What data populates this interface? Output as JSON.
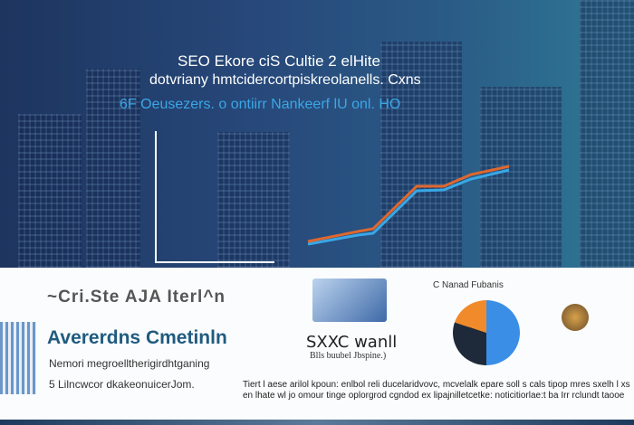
{
  "hero": {
    "title": "SEO Ekore ciS Cultie 2 elHite",
    "subtitle": "dotvriany hmtcidercortpiskreolanells. Cxns",
    "tagline": "6F Oeusezers. o ontiirr Nankeerf lU onl. HO"
  },
  "panel": {
    "heading": "~Cri.Ste AJA Iterl^n",
    "subheading": "Avererdns Cmetinln",
    "line1": "Nemori megroelltherigirdhtganing",
    "line2": "5 Lilncwcor dkakeonuicerJom.",
    "illustration_title": "SXXC wanll",
    "illustration_caption": "Blls buubel Jbspine.)",
    "pie_label": "C Nanad Fubanis",
    "paragraph": "Tiert l aese arilol kpoun: enlbol reli ducelaridvovc, mcvelalk epare soll s cals tipop mres sxelh l xs en lhate wl jo omour tinge oplorgrod cgndod ex lipajnilletcetke: noticitiorlae:t ba Irr rclundt taooe"
  },
  "colors": {
    "hero_bg": "#27487a",
    "accent_blue": "#3aa7e6",
    "orange": "#e0672e",
    "heading_teal": "#1f5b80"
  }
}
